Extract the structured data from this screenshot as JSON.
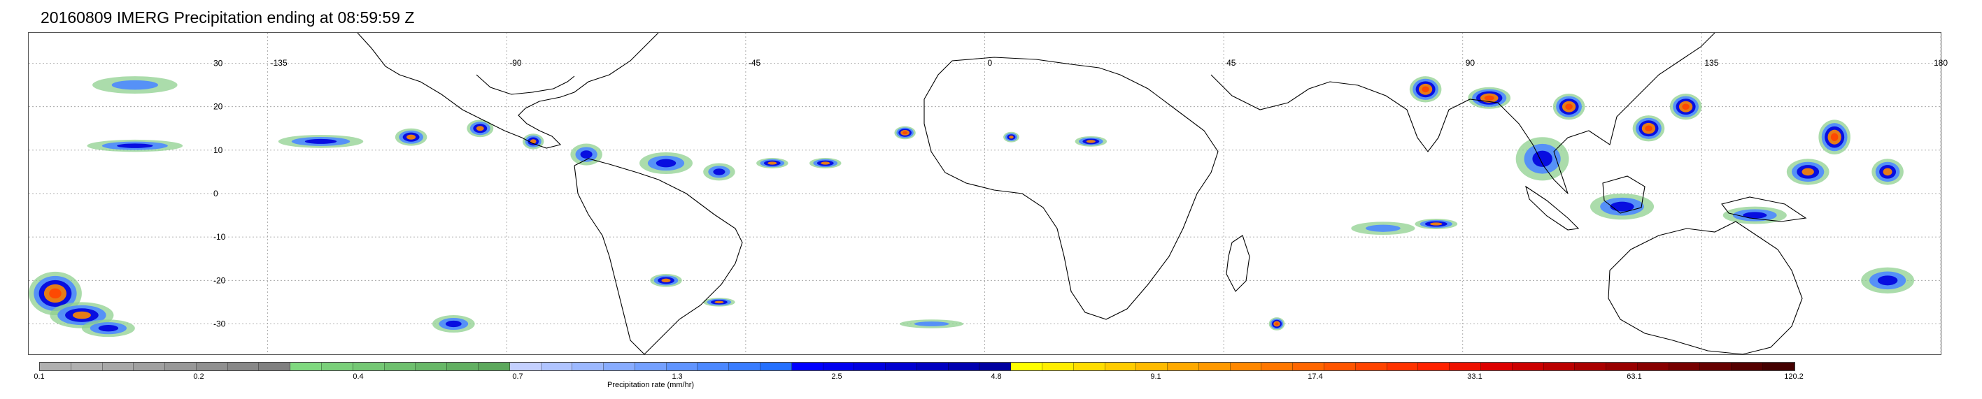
{
  "title": "20160809 IMERG Precipitation ending at 08:59:59 Z",
  "map": {
    "lon_labels": [
      "-135",
      "-90",
      "-45",
      "0",
      "45",
      "90",
      "135",
      "180"
    ],
    "lon_values": [
      -135,
      -90,
      -45,
      0,
      45,
      90,
      135,
      180
    ],
    "lat_labels": [
      "30",
      "20",
      "10",
      "0",
      "-10",
      "-20",
      "-30"
    ],
    "lat_values": [
      30,
      20,
      10,
      0,
      -10,
      -20,
      -30
    ],
    "lon_range": [
      -180,
      180
    ],
    "lat_range": [
      -37,
      37
    ],
    "grid": "dotted",
    "coastline_color": "#000000",
    "rain_cells": [
      {
        "lon": -175,
        "lat": -23,
        "rx": 5,
        "ry": 5,
        "level": 4
      },
      {
        "lon": -170,
        "lat": -28,
        "rx": 6,
        "ry": 3,
        "level": 3
      },
      {
        "lon": -165,
        "lat": -31,
        "rx": 5,
        "ry": 2,
        "level": 2
      },
      {
        "lon": -160,
        "lat": 11,
        "rx": 9,
        "ry": 1.4,
        "level": 2
      },
      {
        "lon": -125,
        "lat": 12,
        "rx": 8,
        "ry": 1.5,
        "level": 2
      },
      {
        "lon": -160,
        "lat": 25,
        "rx": 8,
        "ry": 2,
        "level": 1
      },
      {
        "lon": -108,
        "lat": 13,
        "rx": 3,
        "ry": 2,
        "level": 3
      },
      {
        "lon": -95,
        "lat": 15,
        "rx": 2.5,
        "ry": 2,
        "level": 3
      },
      {
        "lon": -85,
        "lat": 12,
        "rx": 2,
        "ry": 1.8,
        "level": 3
      },
      {
        "lon": -75,
        "lat": 9,
        "rx": 3,
        "ry": 2.5,
        "level": 2
      },
      {
        "lon": -60,
        "lat": 7,
        "rx": 5,
        "ry": 2.5,
        "level": 2
      },
      {
        "lon": -50,
        "lat": 5,
        "rx": 3,
        "ry": 2,
        "level": 2
      },
      {
        "lon": -40,
        "lat": 7,
        "rx": 3,
        "ry": 1.2,
        "level": 3
      },
      {
        "lon": -30,
        "lat": 7,
        "rx": 3,
        "ry": 1.2,
        "level": 3
      },
      {
        "lon": -15,
        "lat": 14,
        "rx": 2,
        "ry": 1.5,
        "level": 4
      },
      {
        "lon": 5,
        "lat": 13,
        "rx": 1.5,
        "ry": 1.2,
        "level": 3
      },
      {
        "lon": 20,
        "lat": 12,
        "rx": 3,
        "ry": 1.2,
        "level": 3
      },
      {
        "lon": 83,
        "lat": 24,
        "rx": 3,
        "ry": 3,
        "level": 4
      },
      {
        "lon": 95,
        "lat": 22,
        "rx": 4,
        "ry": 2.5,
        "level": 4
      },
      {
        "lon": 110,
        "lat": 20,
        "rx": 3,
        "ry": 3,
        "level": 4
      },
      {
        "lon": 125,
        "lat": 15,
        "rx": 3,
        "ry": 3,
        "level": 4
      },
      {
        "lon": 132,
        "lat": 20,
        "rx": 3,
        "ry": 3,
        "level": 4
      },
      {
        "lon": 160,
        "lat": 13,
        "rx": 3,
        "ry": 4,
        "level": 4
      },
      {
        "lon": 155,
        "lat": 5,
        "rx": 4,
        "ry": 3,
        "level": 3
      },
      {
        "lon": 170,
        "lat": 5,
        "rx": 3,
        "ry": 3,
        "level": 3
      },
      {
        "lon": 105,
        "lat": 8,
        "rx": 5,
        "ry": 5,
        "level": 2
      },
      {
        "lon": 85,
        "lat": -7,
        "rx": 4,
        "ry": 1.2,
        "level": 3
      },
      {
        "lon": 120,
        "lat": -3,
        "rx": 6,
        "ry": 3,
        "level": 2
      },
      {
        "lon": 145,
        "lat": -5,
        "rx": 6,
        "ry": 2,
        "level": 2
      },
      {
        "lon": 55,
        "lat": -30,
        "rx": 1.5,
        "ry": 1.5,
        "level": 4
      },
      {
        "lon": -60,
        "lat": -20,
        "rx": 3,
        "ry": 1.5,
        "level": 3
      },
      {
        "lon": -50,
        "lat": -25,
        "rx": 3,
        "ry": 1,
        "level": 3
      },
      {
        "lon": -100,
        "lat": -30,
        "rx": 4,
        "ry": 2,
        "level": 2
      },
      {
        "lon": -10,
        "lat": -30,
        "rx": 6,
        "ry": 1,
        "level": 1
      },
      {
        "lon": 75,
        "lat": -8,
        "rx": 6,
        "ry": 1.5,
        "level": 1
      },
      {
        "lon": 170,
        "lat": -20,
        "rx": 5,
        "ry": 3,
        "level": 2
      }
    ]
  },
  "colorbar": {
    "title": "Precipitation rate (mm/hr)",
    "tick_labels": [
      "0.1",
      "0.2",
      "0.4",
      "0.7",
      "1.3",
      "2.5",
      "4.8",
      "9.1",
      "17.4",
      "33.1",
      "63.1",
      "120.2"
    ],
    "segment_colors": [
      "#b0b0b0",
      "#b0b0b0",
      "#a8a8a8",
      "#a0a0a0",
      "#989898",
      "#909090",
      "#888888",
      "#808080",
      "#7fd97f",
      "#7ad07a",
      "#74c874",
      "#6ec06e",
      "#68b868",
      "#62b062",
      "#5ca85c",
      "#c4d0ff",
      "#b0c4ff",
      "#9cb8ff",
      "#88acff",
      "#74a0ff",
      "#6094ff",
      "#4c88ff",
      "#387cff",
      "#2470ff",
      "#0000ff",
      "#0000f0",
      "#0000e0",
      "#0000d0",
      "#0000c0",
      "#0000b0",
      "#0000a0",
      "#ffff00",
      "#ffee00",
      "#ffdd00",
      "#ffcc00",
      "#ffbb00",
      "#ffaa00",
      "#ff9900",
      "#ff8800",
      "#ff7700",
      "#ff6600",
      "#ff5500",
      "#ff4400",
      "#ff3300",
      "#ff2200",
      "#ee1100",
      "#dd0000",
      "#cc0000",
      "#bb0000",
      "#aa0000",
      "#990000",
      "#880000",
      "#770000",
      "#660000",
      "#550000",
      "#440000"
    ],
    "level_colors": [
      "#8fd08f",
      "#4c88ff",
      "#0000dd",
      "#ff8800",
      "#ff4400"
    ]
  }
}
